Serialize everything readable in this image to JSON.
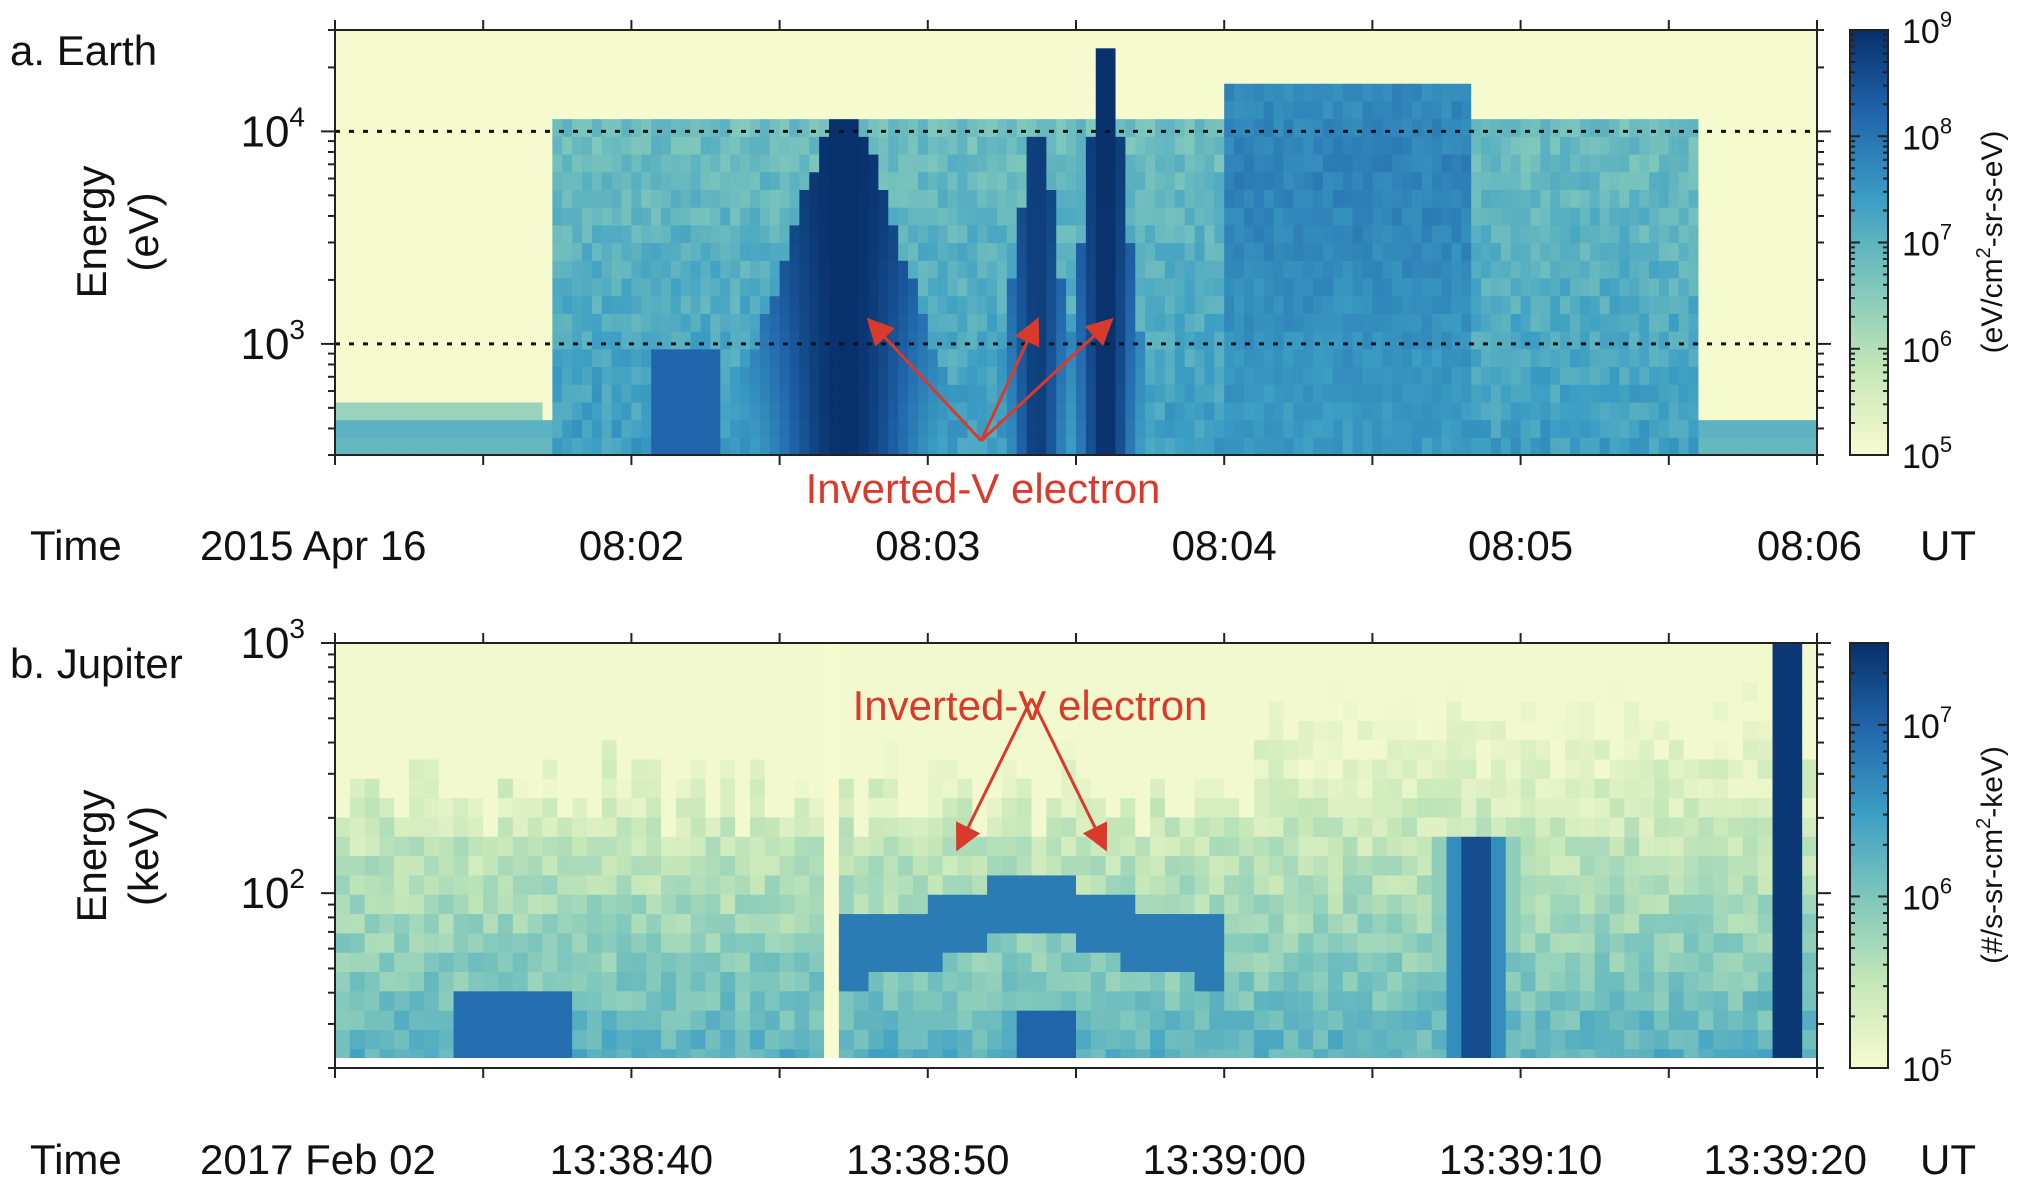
{
  "chart_data": [
    {
      "type": "heatmap",
      "panel_label": "a. Earth",
      "ylabel": "Energy\n(eV)",
      "yscale": "log",
      "ylim": [
        300,
        30000
      ],
      "yticks": [
        {
          "value": 1000,
          "base": "10",
          "exp": "3"
        },
        {
          "value": 10000,
          "base": "10",
          "exp": "4"
        }
      ],
      "reference_lines": [
        1000,
        10000
      ],
      "time_prefix": "Time",
      "date": "2015 Apr 16",
      "time_unit": "UT",
      "x_unit": "minutes after 08:00 UT",
      "xlim": [
        1.0,
        6.0
      ],
      "xticks": [
        {
          "value": 2,
          "label": "08:02"
        },
        {
          "value": 3,
          "label": "08:03"
        },
        {
          "value": 4,
          "label": "08:04"
        },
        {
          "value": 5,
          "label": "08:05"
        },
        {
          "value": 6,
          "label": "08:06"
        }
      ],
      "colorbar": {
        "label": "(eV/cm²-sr-s-eV)",
        "label_base": "(eV/cm",
        "label_sup": "2",
        "label_rest": "-sr-s-eV)",
        "scale": "log",
        "range": [
          100000,
          1000000000
        ],
        "ticks": [
          {
            "value": 100000,
            "base": "10",
            "exp": "5"
          },
          {
            "value": 1000000,
            "base": "10",
            "exp": "6"
          },
          {
            "value": 10000000,
            "base": "10",
            "exp": "7"
          },
          {
            "value": 100000000,
            "base": "10",
            "exp": "8"
          },
          {
            "value": 1000000000,
            "base": "10",
            "exp": "9"
          }
        ],
        "colors": [
          "#f8fbd0",
          "#c5e7b8",
          "#7fc7bc",
          "#3c9ec4",
          "#2166ac",
          "#08306b"
        ]
      },
      "annotation": {
        "text": "Inverted-V electron",
        "arrow_targets": [
          [
            2.8,
            1300
          ],
          [
            3.37,
            1300
          ],
          [
            3.62,
            1300
          ]
        ],
        "arrow_origin": [
          3.18,
          350
        ]
      },
      "features": [
        {
          "kind": "inverted-v",
          "center": 2.72,
          "peak_energy": 8000,
          "intensity": 9.0
        },
        {
          "kind": "inverted-v",
          "center": 3.37,
          "peak_energy": 7000,
          "intensity": 8.8
        },
        {
          "kind": "inverted-v",
          "center": 3.6,
          "peak_energy": 18000,
          "intensity": 9.0
        },
        {
          "kind": "band",
          "from": 1.72,
          "to": 5.6,
          "max_energy": 11000,
          "intensity": 7.2
        },
        {
          "kind": "band",
          "from": 4.0,
          "to": 4.85,
          "max_energy": 16000,
          "intensity": 7.8
        }
      ]
    },
    {
      "type": "heatmap",
      "panel_label": "b. Jupiter",
      "ylabel": "Energy\n(keV)",
      "yscale": "log",
      "ylim": [
        20,
        1000
      ],
      "yticks": [
        {
          "value": 100,
          "base": "10",
          "exp": "2"
        },
        {
          "value": 1000,
          "base": "10",
          "exp": "3"
        }
      ],
      "time_prefix": "Time",
      "date": "2017 Feb 02",
      "time_unit": "UT",
      "x_unit": "seconds after 13:38:00 UT",
      "xlim": [
        30,
        80
      ],
      "xticks": [
        {
          "value": 40,
          "label": "13:38:40"
        },
        {
          "value": 50,
          "label": "13:38:50"
        },
        {
          "value": 60,
          "label": "13:39:00"
        },
        {
          "value": 70,
          "label": "13:39:10"
        },
        {
          "value": 80,
          "label": "13:39:20"
        }
      ],
      "colorbar": {
        "label": "(#/s-sr-cm²-keV)",
        "label_base": "(#/s-sr-cm",
        "label_sup": "2",
        "label_rest": "-keV)",
        "scale": "log",
        "range": [
          100000,
          30000000
        ],
        "ticks": [
          {
            "value": 100000,
            "base": "10",
            "exp": "5"
          },
          {
            "value": 1000000,
            "base": "10",
            "exp": "6"
          },
          {
            "value": 10000000,
            "base": "10",
            "exp": "7"
          }
        ],
        "colors": [
          "#f8fbd0",
          "#c5e7b8",
          "#7fc7bc",
          "#3c9ec4",
          "#2166ac",
          "#08306b"
        ]
      },
      "annotation": {
        "text": "Inverted-V electron",
        "arrow_targets": [
          [
            51.0,
            150
          ],
          [
            56.0,
            150
          ]
        ],
        "arrow_origin": [
          53.5,
          600
        ]
      },
      "features": [
        {
          "kind": "inverted-v",
          "center": 53.5,
          "peak_energy": 95,
          "intensity": 6.8
        },
        {
          "kind": "burst",
          "center": 68.5,
          "peak_energy": 150,
          "intensity": 7.3
        },
        {
          "kind": "spike",
          "center": 79.0,
          "peak_energy": 1000,
          "intensity": 7.4
        }
      ]
    }
  ]
}
